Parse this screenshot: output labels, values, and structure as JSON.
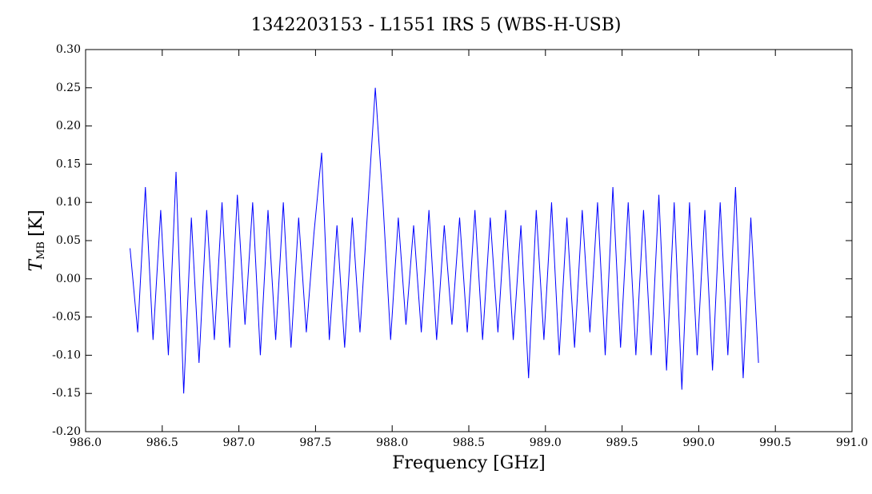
{
  "chart_data": {
    "type": "line",
    "title": "1342203153 - L1551 IRS 5 (WBS-H-USB)",
    "x_label": "Frequency [GHz]",
    "y_label": {
      "symbol": "T",
      "subscript": "MB",
      "unit": "[K]"
    },
    "x": [
      986.29,
      986.34,
      986.39,
      986.44,
      986.49,
      986.54,
      986.59,
      986.64,
      986.69,
      986.74,
      986.79,
      986.84,
      986.89,
      986.94,
      986.99,
      987.04,
      987.09,
      987.14,
      987.19,
      987.24,
      987.29,
      987.34,
      987.39,
      987.44,
      987.49,
      987.54,
      987.59,
      987.64,
      987.69,
      987.74,
      987.79,
      987.84,
      987.89,
      987.94,
      987.99,
      988.04,
      988.09,
      988.14,
      988.19,
      988.24,
      988.29,
      988.34,
      988.39,
      988.44,
      988.49,
      988.54,
      988.59,
      988.64,
      988.69,
      988.74,
      988.79,
      988.84,
      988.89,
      988.94,
      988.99,
      989.04,
      989.09,
      989.14,
      989.19,
      989.24,
      989.29,
      989.34,
      989.39,
      989.44,
      989.49,
      989.54,
      989.59,
      989.64,
      989.69,
      989.74,
      989.79,
      989.84,
      989.89,
      989.94,
      989.99,
      990.04,
      990.09,
      990.14,
      990.19,
      990.24,
      990.29,
      990.34,
      990.39
    ],
    "series": [
      {
        "color": "#0000ff",
        "values": [
          0.04,
          -0.07,
          0.12,
          -0.08,
          0.09,
          -0.1,
          0.14,
          -0.15,
          0.08,
          -0.11,
          0.09,
          -0.08,
          0.1,
          -0.09,
          0.11,
          -0.06,
          0.1,
          -0.1,
          0.09,
          -0.08,
          0.1,
          -0.09,
          0.08,
          -0.07,
          0.06,
          0.165,
          -0.08,
          0.07,
          -0.09,
          0.08,
          -0.07,
          0.09,
          0.25,
          0.1,
          -0.08,
          0.08,
          -0.06,
          0.07,
          -0.07,
          0.09,
          -0.08,
          0.07,
          -0.06,
          0.08,
          -0.07,
          0.09,
          -0.08,
          0.08,
          -0.07,
          0.09,
          -0.08,
          0.07,
          -0.13,
          0.09,
          -0.08,
          0.1,
          -0.1,
          0.08,
          -0.09,
          0.09,
          -0.07,
          0.1,
          -0.1,
          0.12,
          -0.09,
          0.1,
          -0.1,
          0.09,
          -0.1,
          0.11,
          -0.12,
          0.1,
          -0.145,
          0.1,
          -0.1,
          0.09,
          -0.12,
          0.1,
          -0.1,
          0.12,
          -0.13,
          0.08,
          -0.11
        ]
      }
    ],
    "xlim": [
      986.0,
      991.0
    ],
    "xticks": [
      {
        "value": 986.0,
        "label": "986.0"
      },
      {
        "value": 986.5,
        "label": "986.5"
      },
      {
        "value": 987.0,
        "label": "987.0"
      },
      {
        "value": 987.5,
        "label": "987.5"
      },
      {
        "value": 988.0,
        "label": "988.0"
      },
      {
        "value": 988.5,
        "label": "988.5"
      },
      {
        "value": 989.0,
        "label": "989.0"
      },
      {
        "value": 989.5,
        "label": "989.5"
      },
      {
        "value": 990.0,
        "label": "990.0"
      },
      {
        "value": 990.5,
        "label": "990.5"
      },
      {
        "value": 991.0,
        "label": "991.0"
      }
    ],
    "ylim": [
      -0.2,
      0.3
    ],
    "yticks": [
      {
        "value": -0.2,
        "label": "-0.20"
      },
      {
        "value": -0.15,
        "label": "-0.15"
      },
      {
        "value": -0.1,
        "label": "-0.10"
      },
      {
        "value": -0.05,
        "label": "-0.05"
      },
      {
        "value": 0,
        "label": "0.00"
      },
      {
        "value": 0.05,
        "label": "0.05"
      },
      {
        "value": 0.1,
        "label": "0.10"
      },
      {
        "value": 0.15,
        "label": "0.15"
      },
      {
        "value": 0.2,
        "label": "0.20"
      },
      {
        "value": 0.25,
        "label": "0.25"
      },
      {
        "value": 0.3,
        "label": "0.30"
      }
    ]
  }
}
